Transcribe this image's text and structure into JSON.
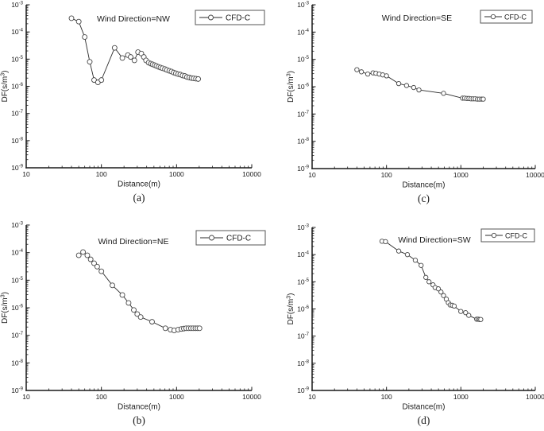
{
  "figure": {
    "background": "#ffffff",
    "axis_color": "#1a1a1a",
    "line_color": "#2b2b2b",
    "marker_fill": "#ffffff",
    "marker_stroke": "#474747",
    "text_color": "#1a1a1a",
    "legend_border_color": "#555555",
    "xlabel": "Distance(m)",
    "ylabel": "DF(s/m³)",
    "legend_label": "CFD-C",
    "x_tick_labels": [
      "10",
      "100",
      "1000",
      "10000"
    ],
    "y_tick_exponents": [
      "-3",
      "-4",
      "-5",
      "-6",
      "-7",
      "-8",
      "-9"
    ]
  },
  "chart_data": [
    {
      "id": "a",
      "caption": "(a)",
      "title": "Wind Direction=NW",
      "type": "line",
      "marker": "open-circle",
      "xscale": "log",
      "yscale": "log",
      "xlim": [
        10,
        10000
      ],
      "ylim": [
        1e-09,
        0.001
      ],
      "xlabel": "Distance(m)",
      "ylabel": "DF(s/m³)",
      "legend": [
        "CFD-C"
      ],
      "legend_position": "top-right",
      "grid": false,
      "x": [
        40,
        50,
        60,
        70,
        80,
        90,
        100,
        150,
        190,
        225,
        245,
        275,
        307,
        340,
        367,
        392,
        425,
        455,
        480,
        510,
        540,
        575,
        610,
        650,
        700,
        745,
        800,
        855,
        915,
        980,
        1050,
        1120,
        1200,
        1285,
        1375,
        1475,
        1580,
        1690,
        1810,
        1940
      ],
      "y": [
        0.00032,
        0.00024,
        6.5e-05,
        8e-06,
        1.7e-06,
        1.4e-06,
        1.7e-06,
        2.6e-05,
        1.1e-05,
        1.4e-05,
        1.2e-05,
        9e-06,
        1.8e-05,
        1.6e-05,
        1.2e-05,
        9e-06,
        7.4e-06,
        6.8e-06,
        6.4e-06,
        6e-06,
        5.6e-06,
        5.2e-06,
        4.9e-06,
        4.6e-06,
        4.3e-06,
        4e-06,
        3.7e-06,
        3.5e-06,
        3.2e-06,
        3e-06,
        2.8e-06,
        2.7e-06,
        2.5e-06,
        2.4e-06,
        2.2e-06,
        2.1e-06,
        2e-06,
        1.95e-06,
        1.9e-06,
        1.85e-06
      ]
    },
    {
      "id": "c",
      "caption": "(c)",
      "title": "Wind Direction=SE",
      "type": "line",
      "marker": "open-circle",
      "xscale": "log",
      "yscale": "log",
      "xlim": [
        10,
        10000
      ],
      "ylim": [
        1e-09,
        0.001
      ],
      "xlabel": "Distance(m)",
      "ylabel": "DF(s/m³)",
      "legend": [
        "CFD-C"
      ],
      "legend_position": "top-right",
      "grid": false,
      "x": [
        40,
        46,
        56,
        66,
        72,
        80,
        89,
        100,
        146,
        186,
        232,
        273,
        585,
        1050,
        1120,
        1200,
        1280,
        1370,
        1460,
        1560,
        1670,
        1780,
        1900,
        2000
      ],
      "y": [
        4.2e-06,
        3.5e-06,
        2.9e-06,
        3.2e-06,
        3.1e-06,
        2.9e-06,
        2.7e-06,
        2.5e-06,
        1.3e-06,
        1.1e-06,
        9.3e-07,
        7.6e-07,
        5.7e-07,
        3.8e-07,
        3.8e-07,
        3.7e-07,
        3.7e-07,
        3.6e-07,
        3.6e-07,
        3.6e-07,
        3.5e-07,
        3.5e-07,
        3.5e-07,
        3.5e-07
      ]
    },
    {
      "id": "b",
      "caption": "(b)",
      "title": "Wind Direction=NE",
      "type": "line",
      "marker": "open-circle",
      "xscale": "log",
      "yscale": "log",
      "xlim": [
        10,
        10000
      ],
      "ylim": [
        1e-09,
        0.001
      ],
      "xlabel": "Distance(m)",
      "ylabel": "DF(s/m³)",
      "legend": [
        "CFD-C"
      ],
      "legend_position": "top-right",
      "grid": false,
      "x": [
        50,
        57,
        65,
        72,
        80,
        88,
        100,
        140,
        190,
        230,
        270,
        300,
        333,
        472,
        710,
        830,
        930,
        1050,
        1160,
        1250,
        1340,
        1440,
        1550,
        1660,
        1780,
        1900,
        2020
      ],
      "y": [
        8e-05,
        0.000105,
        8e-05,
        5.7e-05,
        4.1e-05,
        3.1e-05,
        2.1e-05,
        6.5e-06,
        2.9e-06,
        1.5e-06,
        8.3e-07,
        5.9e-07,
        4.6e-07,
        3.1e-07,
        1.8e-07,
        1.6e-07,
        1.5e-07,
        1.6e-07,
        1.7e-07,
        1.75e-07,
        1.8e-07,
        1.8e-07,
        1.8e-07,
        1.8e-07,
        1.8e-07,
        1.8e-07,
        1.8e-07
      ]
    },
    {
      "id": "d",
      "caption": "(d)",
      "title": "Wind Direction=SW",
      "type": "line",
      "marker": "open-circle",
      "xscale": "log",
      "yscale": "log",
      "xlim": [
        10,
        10000
      ],
      "ylim": [
        1e-09,
        0.001
      ],
      "xlabel": "Distance(m)",
      "ylabel": "DF(s/m³)",
      "legend": [
        "CFD-C"
      ],
      "legend_position": "top-right",
      "grid": false,
      "x": [
        87,
        97,
        146,
        191,
        244,
        292,
        338,
        373,
        422,
        451,
        498,
        540,
        585,
        637,
        678,
        719,
        766,
        813,
        998,
        1157,
        1276,
        1630,
        1700,
        1780,
        1850
      ],
      "y": [
        0.00031,
        0.0003,
        0.000135,
        0.0001,
        6.2e-05,
        4e-05,
        1.45e-05,
        1e-05,
        7.7e-06,
        6.1e-06,
        5.5e-06,
        4.2e-06,
        3.1e-06,
        2.3e-06,
        1.7e-06,
        1.4e-06,
        1.36e-06,
        1.28e-06,
        8.1e-07,
        7.3e-07,
        5.8e-07,
        4.2e-07,
        4.2e-07,
        4.1e-07,
        4.1e-07
      ]
    }
  ]
}
